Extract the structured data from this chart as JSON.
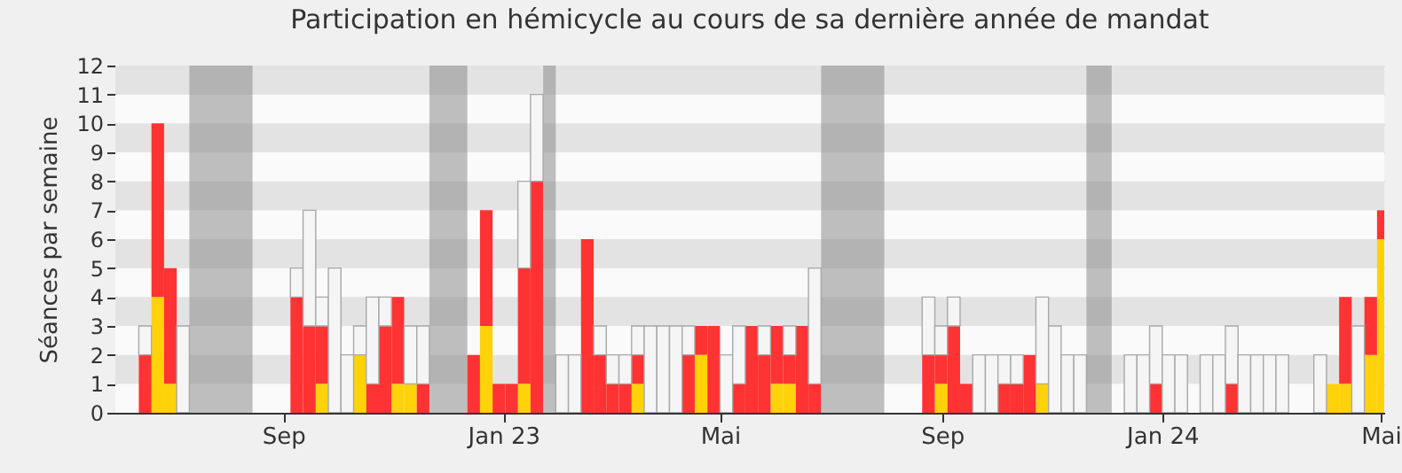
{
  "chart_data": {
    "type": "bar",
    "title": "Participation en hémicycle au cours de sa dernière année de mandat",
    "ylabel": "Séances par semaine",
    "x": [
      "2022-06-13",
      "2022-06-20",
      "2022-06-27",
      "2022-07-04",
      "2022-07-11",
      "2022-07-18",
      "2022-07-25",
      "2022-08-01",
      "2022-08-08",
      "2022-08-15",
      "2022-08-22",
      "2022-08-29",
      "2022-09-05",
      "2022-09-12",
      "2022-09-19",
      "2022-09-26",
      "2022-10-03",
      "2022-10-10",
      "2022-10-17",
      "2022-10-24",
      "2022-10-31",
      "2022-11-07",
      "2022-11-14",
      "2022-11-21",
      "2022-11-28",
      "2022-12-05",
      "2022-12-12",
      "2022-12-19",
      "2022-12-26",
      "2023-01-02",
      "2023-01-09",
      "2023-01-16",
      "2023-01-23",
      "2023-01-30",
      "2023-02-06",
      "2023-02-13",
      "2023-02-20",
      "2023-02-27",
      "2023-03-06",
      "2023-03-13",
      "2023-03-20",
      "2023-03-27",
      "2023-04-03",
      "2023-04-10",
      "2023-04-17",
      "2023-04-24",
      "2023-05-01",
      "2023-05-08",
      "2023-05-15",
      "2023-05-22",
      "2023-05-29",
      "2023-06-05",
      "2023-06-12",
      "2023-06-19",
      "2023-06-26",
      "2023-07-03",
      "2023-07-10",
      "2023-07-17",
      "2023-07-24",
      "2023-07-31",
      "2023-08-07",
      "2023-08-14",
      "2023-08-21",
      "2023-08-28",
      "2023-09-04",
      "2023-09-11",
      "2023-09-18",
      "2023-09-25",
      "2023-10-02",
      "2023-10-09",
      "2023-10-16",
      "2023-10-23",
      "2023-10-30",
      "2023-11-06",
      "2023-11-13",
      "2023-11-20",
      "2023-11-27",
      "2023-12-04",
      "2023-12-11",
      "2023-12-18",
      "2023-12-25",
      "2024-01-01",
      "2024-01-08",
      "2024-01-15",
      "2024-01-22",
      "2024-01-29",
      "2024-02-05",
      "2024-02-12",
      "2024-02-19",
      "2024-02-26",
      "2024-03-04",
      "2024-03-11",
      "2024-03-18",
      "2024-03-25",
      "2024-04-01",
      "2024-04-08",
      "2024-04-15",
      "2024-04-22",
      "2024-04-29"
    ],
    "series": [
      {
        "color": "#ffd20a",
        "values": [
          0,
          4,
          1,
          0,
          0,
          0,
          0,
          0,
          0,
          0,
          0,
          0,
          0,
          0,
          1,
          0,
          0,
          2,
          0,
          0,
          1,
          1,
          0,
          0,
          0,
          0,
          0,
          3,
          0,
          0,
          1,
          0,
          0,
          0,
          0,
          0,
          0,
          0,
          0,
          1,
          0,
          0,
          0,
          0,
          2,
          0,
          0,
          0,
          0,
          0,
          1,
          1,
          0,
          0,
          0,
          0,
          0,
          0,
          0,
          0,
          0,
          0,
          0,
          1,
          0,
          0,
          0,
          0,
          0,
          0,
          0,
          1,
          0,
          0,
          0,
          0,
          0,
          0,
          0,
          0,
          0,
          0,
          0,
          0,
          0,
          0,
          0,
          0,
          0,
          0,
          0,
          0,
          0,
          0,
          1,
          1,
          0,
          2,
          6
        ]
      },
      {
        "color": "#ff3333",
        "values": [
          2,
          6,
          4,
          0,
          0,
          0,
          0,
          0,
          0,
          0,
          0,
          0,
          4,
          3,
          2,
          0,
          0,
          0,
          1,
          3,
          3,
          0,
          1,
          0,
          0,
          0,
          2,
          4,
          1,
          1,
          4,
          8,
          0,
          0,
          0,
          6,
          2,
          1,
          1,
          1,
          0,
          0,
          0,
          2,
          1,
          3,
          0,
          1,
          3,
          2,
          2,
          1,
          3,
          1,
          0,
          0,
          0,
          0,
          0,
          0,
          0,
          0,
          2,
          1,
          3,
          1,
          0,
          0,
          1,
          1,
          2,
          0,
          0,
          0,
          0,
          0,
          0,
          0,
          0,
          0,
          1,
          0,
          0,
          0,
          0,
          0,
          1,
          0,
          0,
          0,
          0,
          0,
          0,
          0,
          0,
          3,
          0,
          2,
          1
        ]
      },
      {
        "color": "#f5f5f5",
        "values": [
          1,
          0,
          0,
          3,
          0,
          0,
          0,
          0,
          0,
          0,
          0,
          0,
          1,
          4,
          1,
          5,
          2,
          1,
          3,
          1,
          0,
          2,
          2,
          0,
          0,
          0,
          0,
          0,
          0,
          0,
          3,
          3,
          0,
          2,
          2,
          0,
          1,
          1,
          1,
          1,
          3,
          3,
          3,
          1,
          0,
          0,
          2,
          2,
          0,
          1,
          0,
          1,
          0,
          4,
          0,
          0,
          0,
          0,
          0,
          0,
          0,
          0,
          2,
          1,
          1,
          0,
          2,
          2,
          1,
          1,
          0,
          3,
          3,
          2,
          2,
          0,
          0,
          0,
          2,
          2,
          2,
          2,
          2,
          0,
          2,
          2,
          2,
          2,
          2,
          2,
          2,
          0,
          0,
          2,
          0,
          0,
          3,
          0,
          0
        ]
      }
    ],
    "stacked": true,
    "bands": [
      {
        "axis": "x",
        "from": "2022-07-11",
        "to": "2022-08-15",
        "color": "#8c8c8c"
      },
      {
        "axis": "x",
        "from": "2022-11-21",
        "to": "2022-12-12",
        "color": "#8c8c8c"
      },
      {
        "axis": "x",
        "from": "2023-01-23",
        "to": "2023-01-30",
        "color": "#8c8c8c"
      },
      {
        "axis": "x",
        "from": "2023-06-26",
        "to": "2023-07-31",
        "color": "#8c8c8c"
      },
      {
        "axis": "x",
        "from": "2023-11-20",
        "to": "2023-12-04",
        "color": "#8c8c8c"
      }
    ],
    "xlim": [
      "2022-05-31",
      "2024-05-03"
    ],
    "xticks": [
      {
        "value": "2022-09-01",
        "label": "Sep"
      },
      {
        "value": "2023-01-01",
        "label": "Jan 23"
      },
      {
        "value": "2023-05-01",
        "label": "Mai"
      },
      {
        "value": "2023-09-01",
        "label": "Sep"
      },
      {
        "value": "2024-01-01",
        "label": "Jan 24"
      },
      {
        "value": "2024-05-01",
        "label": "Mai"
      }
    ],
    "ylim": [
      0,
      12
    ],
    "yticks": [
      0,
      1,
      2,
      3,
      4,
      5,
      6,
      7,
      8,
      9,
      10,
      11,
      12
    ],
    "grid": true
  }
}
